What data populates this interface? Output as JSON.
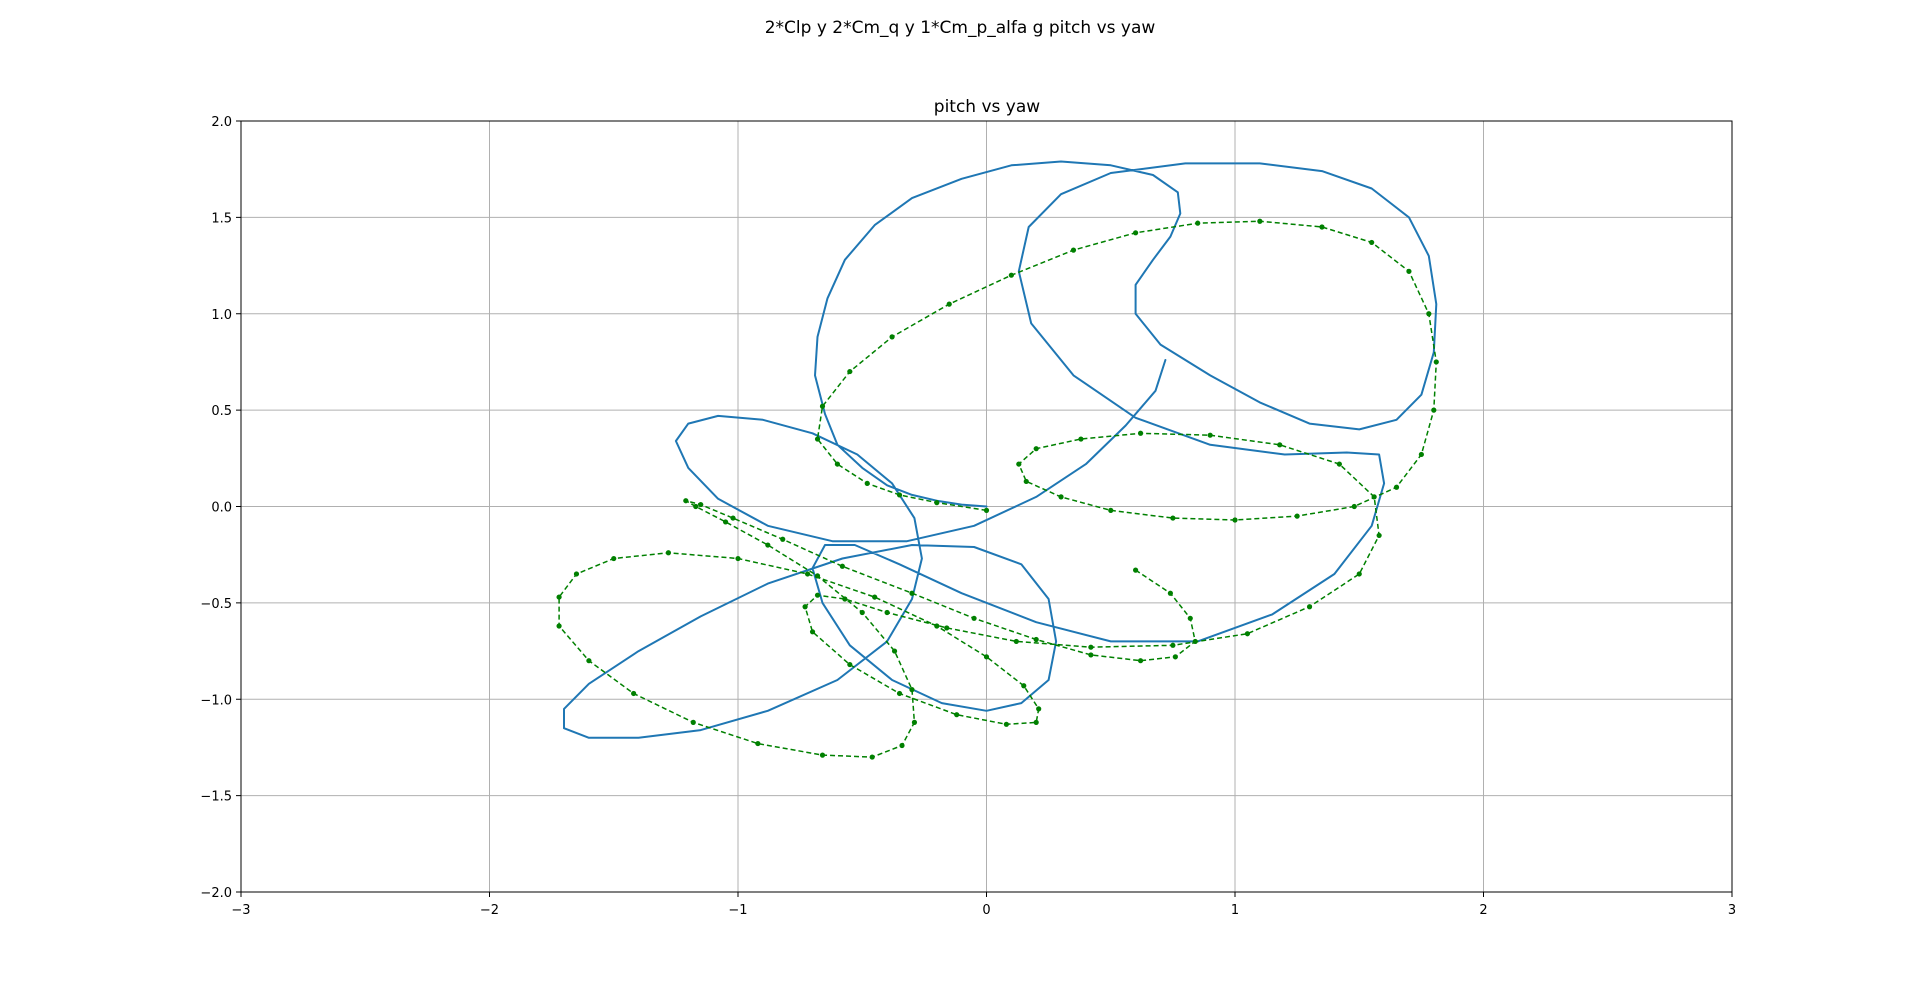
{
  "figure": {
    "suptitle": "2*Clp y 2*Cm_q  y 1*Cm_p_alfa g pitch vs yaw"
  },
  "chart_data": {
    "type": "line",
    "title": "pitch vs yaw",
    "xlabel": "",
    "ylabel": "",
    "xlim": [
      -3,
      3
    ],
    "ylim": [
      -2,
      2
    ],
    "xticks": [
      -3,
      -2,
      -1,
      0,
      1,
      2,
      3
    ],
    "yticks": [
      -2.0,
      -1.5,
      -1.0,
      -0.5,
      0.0,
      0.5,
      1.0,
      1.5,
      2.0
    ],
    "xtick_labels": [
      "−3",
      "−2",
      "−1",
      "0",
      "1",
      "2",
      "3"
    ],
    "ytick_labels": [
      "−2.0",
      "−1.5",
      "−1.0",
      "−0.5",
      "0.0",
      "0.5",
      "1.0",
      "1.5",
      "2.0"
    ],
    "grid": true,
    "colors": {
      "continuous": "#1f77b4",
      "discrete": "#008000"
    },
    "series": [
      {
        "style": "solid",
        "color": "#1f77b4",
        "x": [
          0.0,
          -0.1,
          -0.2,
          -0.3,
          -0.4,
          -0.5,
          -0.6,
          -0.65,
          -0.69,
          -0.68,
          -0.64,
          -0.57,
          -0.45,
          -0.3,
          -0.1,
          0.1,
          0.3,
          0.5,
          0.67,
          0.77,
          0.78,
          0.74,
          0.67,
          0.6,
          0.6,
          0.7,
          0.9,
          1.1,
          1.3,
          1.5,
          1.65,
          1.75,
          1.8,
          1.81,
          1.78,
          1.7,
          1.55,
          1.35,
          1.1,
          0.8,
          0.5,
          0.3,
          0.17,
          0.13,
          0.18,
          0.35,
          0.6,
          0.9,
          1.2,
          1.45,
          1.58,
          1.6,
          1.55,
          1.4,
          1.15,
          0.85,
          0.5,
          0.2,
          -0.1,
          -0.35,
          -0.53,
          -0.65,
          -0.7,
          -0.66,
          -0.55,
          -0.38,
          -0.18,
          0.0,
          0.14,
          0.25,
          0.28,
          0.25,
          0.14,
          -0.05,
          -0.3,
          -0.58,
          -0.88,
          -1.15,
          -1.4,
          -1.6,
          -1.7,
          -1.7,
          -1.6,
          -1.4,
          -1.15,
          -0.88,
          -0.6,
          -0.4,
          -0.3,
          -0.26,
          -0.29,
          -0.38,
          -0.52,
          -0.7,
          -0.9,
          -1.08,
          -1.2,
          -1.25,
          -1.2,
          -1.08,
          -0.88,
          -0.62,
          -0.32,
          -0.05,
          0.2,
          0.4,
          0.56,
          0.68,
          0.72
        ],
        "y": [
          0.0,
          0.01,
          0.03,
          0.06,
          0.11,
          0.2,
          0.32,
          0.48,
          0.68,
          0.88,
          1.08,
          1.28,
          1.46,
          1.6,
          1.7,
          1.77,
          1.79,
          1.77,
          1.72,
          1.63,
          1.52,
          1.4,
          1.28,
          1.15,
          1.0,
          0.84,
          0.68,
          0.54,
          0.43,
          0.4,
          0.45,
          0.58,
          0.8,
          1.05,
          1.3,
          1.5,
          1.65,
          1.74,
          1.78,
          1.78,
          1.73,
          1.62,
          1.45,
          1.22,
          0.95,
          0.68,
          0.46,
          0.32,
          0.27,
          0.28,
          0.27,
          0.12,
          -0.1,
          -0.35,
          -0.56,
          -0.7,
          -0.7,
          -0.6,
          -0.45,
          -0.3,
          -0.2,
          -0.2,
          -0.32,
          -0.5,
          -0.72,
          -0.9,
          -1.02,
          -1.06,
          -1.02,
          -0.9,
          -0.7,
          -0.48,
          -0.3,
          -0.21,
          -0.2,
          -0.27,
          -0.4,
          -0.57,
          -0.75,
          -0.92,
          -1.05,
          -1.15,
          -1.2,
          -1.2,
          -1.16,
          -1.06,
          -0.9,
          -0.7,
          -0.48,
          -0.27,
          -0.06,
          0.12,
          0.27,
          0.38,
          0.45,
          0.47,
          0.43,
          0.34,
          0.2,
          0.04,
          -0.1,
          -0.18,
          -0.18,
          -0.1,
          0.05,
          0.22,
          0.42,
          0.6,
          0.76
        ]
      },
      {
        "style": "dashed-markers",
        "color": "#008000",
        "x": [
          0.0,
          -0.2,
          -0.35,
          -0.48,
          -0.6,
          -0.68,
          -0.66,
          -0.55,
          -0.38,
          -0.15,
          0.1,
          0.35,
          0.6,
          0.85,
          1.1,
          1.35,
          1.55,
          1.7,
          1.78,
          1.81,
          1.8,
          1.75,
          1.65,
          1.48,
          1.25,
          1.0,
          0.75,
          0.5,
          0.3,
          0.16,
          0.13,
          0.2,
          0.38,
          0.62,
          0.9,
          1.18,
          1.42,
          1.56,
          1.58,
          1.5,
          1.3,
          1.05,
          0.75,
          0.42,
          0.12,
          -0.16,
          -0.4,
          -0.57,
          -0.68,
          -0.73,
          -0.7,
          -0.55,
          -0.35,
          -0.12,
          0.08,
          0.2,
          0.21,
          0.15,
          0.0,
          -0.2,
          -0.45,
          -0.72,
          -1.0,
          -1.28,
          -1.5,
          -1.65,
          -1.72,
          -1.72,
          -1.6,
          -1.42,
          -1.18,
          -0.92,
          -0.66,
          -0.46,
          -0.34,
          -0.29,
          -0.3,
          -0.37,
          -0.5,
          -0.68,
          -0.88,
          -1.05,
          -1.17,
          -1.21,
          -1.15,
          -1.02,
          -0.82,
          -0.58,
          -0.3,
          -0.05,
          0.2,
          0.42,
          0.62,
          0.76,
          0.84,
          0.82,
          0.74,
          0.6
        ],
        "y": [
          -0.02,
          0.02,
          0.06,
          0.12,
          0.22,
          0.35,
          0.52,
          0.7,
          0.88,
          1.05,
          1.2,
          1.33,
          1.42,
          1.47,
          1.48,
          1.45,
          1.37,
          1.22,
          1.0,
          0.75,
          0.5,
          0.27,
          0.1,
          0.0,
          -0.05,
          -0.07,
          -0.06,
          -0.02,
          0.05,
          0.13,
          0.22,
          0.3,
          0.35,
          0.38,
          0.37,
          0.32,
          0.22,
          0.05,
          -0.15,
          -0.35,
          -0.52,
          -0.66,
          -0.72,
          -0.73,
          -0.7,
          -0.63,
          -0.55,
          -0.48,
          -0.46,
          -0.52,
          -0.65,
          -0.82,
          -0.97,
          -1.08,
          -1.13,
          -1.12,
          -1.05,
          -0.93,
          -0.78,
          -0.62,
          -0.47,
          -0.35,
          -0.27,
          -0.24,
          -0.27,
          -0.35,
          -0.47,
          -0.62,
          -0.8,
          -0.97,
          -1.12,
          -1.23,
          -1.29,
          -1.3,
          -1.24,
          -1.12,
          -0.95,
          -0.75,
          -0.55,
          -0.36,
          -0.2,
          -0.08,
          0.0,
          0.03,
          0.01,
          -0.06,
          -0.17,
          -0.31,
          -0.45,
          -0.58,
          -0.69,
          -0.77,
          -0.8,
          -0.78,
          -0.7,
          -0.58,
          -0.45,
          -0.33
        ]
      }
    ]
  }
}
